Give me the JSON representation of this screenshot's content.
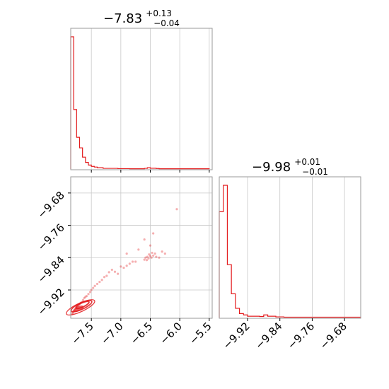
{
  "chart_data": [
    {
      "type": "histogram",
      "panel": "marginal-x",
      "title": {
        "value": "−7.83",
        "plus": "+0.13",
        "minus": "−0.04"
      },
      "xlim": [
        -7.85,
        -5.45
      ],
      "x_ticks": [
        -7.5,
        -7.0,
        -6.5,
        -6.0,
        -5.5
      ],
      "color": "#e31a1c",
      "bin_edges": [
        -7.85,
        -7.8,
        -7.75,
        -7.7,
        -7.65,
        -7.6,
        -7.55,
        -7.5,
        -7.45,
        -7.4,
        -7.35,
        -7.3,
        -7.25,
        -7.2,
        -7.15,
        -7.1,
        -7.05,
        -7.0,
        -6.95,
        -6.9,
        -6.85,
        -6.8,
        -6.75,
        -6.7,
        -6.65,
        -6.6,
        -6.55,
        -6.5,
        -6.45,
        -6.4,
        -6.35,
        -6.3,
        -6.25,
        -6.2,
        -6.15,
        -6.1,
        -6.05,
        -6.0,
        -5.95,
        -5.9,
        -5.85,
        -5.8,
        -5.75,
        -5.7,
        -5.65,
        -5.6,
        -5.55,
        -5.5
      ],
      "counts": [
        100,
        45,
        24,
        16,
        9,
        5,
        3,
        2,
        1.5,
        1,
        1,
        0.5,
        0.5,
        0.5,
        0.5,
        0.5,
        0.3,
        0.3,
        0.3,
        0.3,
        0.2,
        0.2,
        0.2,
        0.2,
        0.2,
        0.5,
        1,
        0.6,
        0.6,
        0.4,
        0.2,
        0.2,
        0.2,
        0.2,
        0.2,
        0.2,
        0.2,
        0.2,
        0.2,
        0.2,
        0.2,
        0.2,
        0.2,
        0.2,
        0.2,
        0.2,
        0.2
      ]
    },
    {
      "type": "histogram",
      "panel": "marginal-y",
      "title": {
        "value": "−9.98",
        "plus": "+0.01",
        "minus": "−0.01"
      },
      "xlim": [
        -9.99,
        -9.64
      ],
      "x_ticks": [
        -9.92,
        -9.84,
        -9.76,
        -9.68
      ],
      "x_tick_labels": [
        "−9.92",
        "−9.84",
        "−9.76",
        "−9.68"
      ],
      "color": "#e31a1c",
      "bin_edges": [
        -9.99,
        -9.98,
        -9.97,
        -9.96,
        -9.95,
        -9.94,
        -9.93,
        -9.92,
        -9.91,
        -9.9,
        -9.89,
        -9.88,
        -9.87,
        -9.86,
        -9.85,
        -9.84,
        -9.83,
        -9.82,
        -9.81,
        -9.8,
        -9.79,
        -9.78,
        -9.77,
        -9.76,
        -9.75,
        -9.74,
        -9.73,
        -9.72,
        -9.71,
        -9.7,
        -9.69,
        -9.68,
        -9.67,
        -9.66,
        -9.65,
        -9.64
      ],
      "counts": [
        80,
        100,
        40,
        18,
        7,
        3,
        2,
        1,
        1,
        1,
        0.8,
        2,
        1,
        1,
        0.5,
        0.5,
        0.3,
        0.3,
        0.3,
        0.3,
        0.3,
        0.3,
        0.3,
        0.3,
        0.3,
        0.3,
        0.3,
        0.3,
        0.3,
        0.3,
        0.3,
        0.3,
        0.3,
        0.3,
        0.3
      ]
    },
    {
      "type": "scatter",
      "panel": "joint",
      "xlim": [
        -7.85,
        -5.45
      ],
      "ylim": [
        -9.99,
        -9.64
      ],
      "x_ticks": [
        -7.5,
        -7.0,
        -6.5,
        -6.0,
        -5.5
      ],
      "x_tick_labels": [
        "−7.5",
        "−7.0",
        "−6.5",
        "−6.0",
        "−5.5"
      ],
      "y_ticks": [
        -9.68,
        -9.76,
        -9.84,
        -9.92
      ],
      "y_tick_labels": [
        "−9.68",
        "−9.76",
        "−9.84",
        "−9.92"
      ],
      "color": "#e31a1c",
      "points": [
        [
          -7.83,
          -9.98
        ],
        [
          -7.82,
          -9.975
        ],
        [
          -7.81,
          -9.977
        ],
        [
          -7.8,
          -9.972
        ],
        [
          -7.78,
          -9.97
        ],
        [
          -7.76,
          -9.965
        ],
        [
          -7.74,
          -9.962
        ],
        [
          -7.72,
          -9.958
        ],
        [
          -7.7,
          -9.955
        ],
        [
          -7.68,
          -9.952
        ],
        [
          -7.66,
          -9.95
        ],
        [
          -7.64,
          -9.945
        ],
        [
          -7.62,
          -9.94
        ],
        [
          -7.6,
          -9.937
        ],
        [
          -7.58,
          -9.935
        ],
        [
          -7.55,
          -9.93
        ],
        [
          -7.52,
          -9.925
        ],
        [
          -7.5,
          -9.92
        ],
        [
          -7.47,
          -9.915
        ],
        [
          -7.44,
          -9.91
        ],
        [
          -7.4,
          -9.905
        ],
        [
          -7.36,
          -9.9
        ],
        [
          -7.32,
          -9.895
        ],
        [
          -7.28,
          -9.888
        ],
        [
          -7.24,
          -9.885
        ],
        [
          -7.2,
          -9.876
        ],
        [
          -7.15,
          -9.87
        ],
        [
          -7.1,
          -9.875
        ],
        [
          -7.05,
          -9.88
        ],
        [
          -6.95,
          -9.865
        ],
        [
          -6.9,
          -9.86
        ],
        [
          -6.85,
          -9.855
        ],
        [
          -6.8,
          -9.85
        ],
        [
          -6.75,
          -9.85
        ],
        [
          -6.6,
          -9.845
        ],
        [
          -6.58,
          -9.84
        ],
        [
          -6.55,
          -9.838
        ],
        [
          -6.53,
          -9.842
        ],
        [
          -6.5,
          -9.836
        ],
        [
          -6.48,
          -9.84
        ],
        [
          -6.45,
          -9.835
        ],
        [
          -6.42,
          -9.83
        ],
        [
          -6.4,
          -9.838
        ],
        [
          -6.56,
          -9.846
        ],
        [
          -6.52,
          -9.832
        ],
        [
          -6.47,
          -9.828
        ],
        [
          -6.35,
          -9.84
        ],
        [
          -6.3,
          -9.825
        ],
        [
          -6.7,
          -9.82
        ],
        [
          -6.5,
          -9.81
        ],
        [
          -6.25,
          -9.83
        ],
        [
          -6.6,
          -9.795
        ],
        [
          -6.45,
          -9.78
        ],
        [
          -6.05,
          -9.72
        ],
        [
          -7.0,
          -9.862
        ],
        [
          -6.9,
          -9.83
        ]
      ],
      "dense_core": {
        "x": -7.78,
        "y": -9.97
      }
    }
  ]
}
